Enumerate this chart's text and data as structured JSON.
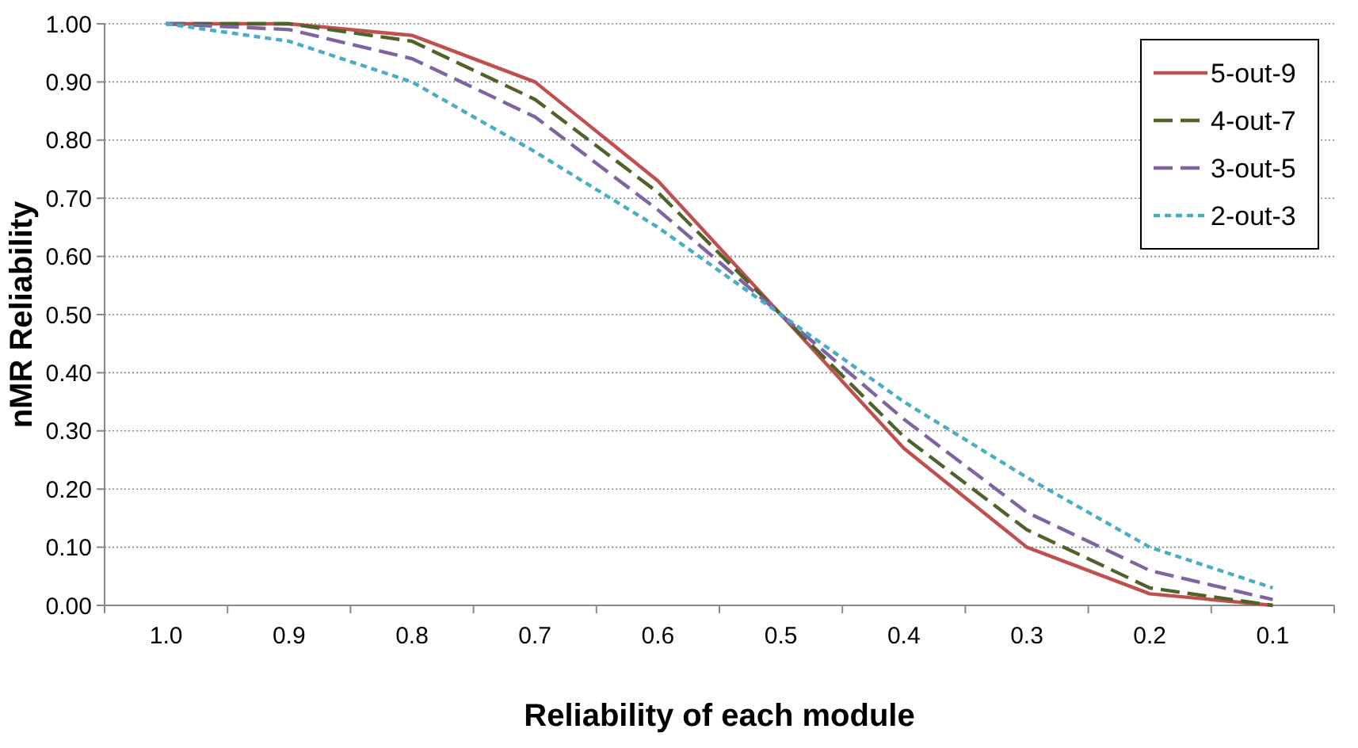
{
  "chart_data": {
    "type": "line",
    "xlabel": "Reliability of each module",
    "ylabel": "nMR Reliability",
    "categories": [
      "1.0",
      "0.9",
      "0.8",
      "0.7",
      "0.6",
      "0.5",
      "0.4",
      "0.3",
      "0.2",
      "0.1"
    ],
    "ylim": [
      0,
      1
    ],
    "yticks": [
      {
        "value": 0,
        "label": "0.00"
      },
      {
        "value": 0.1,
        "label": "0.10"
      },
      {
        "value": 0.2,
        "label": "0.20"
      },
      {
        "value": 0.3,
        "label": "0.30"
      },
      {
        "value": 0.4,
        "label": "0.40"
      },
      {
        "value": 0.5,
        "label": "0.50"
      },
      {
        "value": 0.6,
        "label": "0.60"
      },
      {
        "value": 0.7,
        "label": "0.70"
      },
      {
        "value": 0.8,
        "label": "0.80"
      },
      {
        "value": 0.9,
        "label": "0.90"
      },
      {
        "value": 1,
        "label": "1.00"
      }
    ],
    "grid": "y",
    "legend": "top right",
    "marker": "none",
    "series": [
      {
        "name": "5-out-9",
        "color": "#c0504d",
        "line_style": "solid",
        "values": [
          1,
          1,
          0.98,
          0.9,
          0.73,
          0.5,
          0.27,
          0.1,
          0.02,
          0
        ]
      },
      {
        "name": "4-out-7",
        "color": "#4f6228",
        "line_style": "dashed",
        "values": [
          1,
          1,
          0.97,
          0.87,
          0.71,
          0.5,
          0.29,
          0.13,
          0.03,
          0
        ]
      },
      {
        "name": "3-out-5",
        "color": "#8064a2",
        "line_style": "dashed",
        "values": [
          1,
          0.99,
          0.94,
          0.84,
          0.68,
          0.5,
          0.32,
          0.16,
          0.06,
          0.01
        ]
      },
      {
        "name": "2-out-3",
        "color": "#4bacc6",
        "line_style": "dotted",
        "values": [
          1,
          0.97,
          0.9,
          0.78,
          0.65,
          0.5,
          0.35,
          0.22,
          0.1,
          0.03
        ]
      }
    ]
  }
}
